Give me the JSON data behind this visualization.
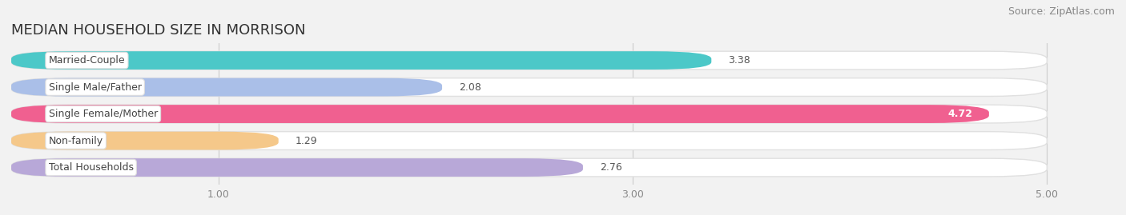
{
  "title": "MEDIAN HOUSEHOLD SIZE IN MORRISON",
  "source": "Source: ZipAtlas.com",
  "categories": [
    "Married-Couple",
    "Single Male/Father",
    "Single Female/Mother",
    "Non-family",
    "Total Households"
  ],
  "values": [
    3.38,
    2.08,
    4.72,
    1.29,
    2.76
  ],
  "bar_colors": [
    "#4cc8c8",
    "#aabfe8",
    "#f06090",
    "#f5c88a",
    "#b8a8d8"
  ],
  "background_color": "#f2f2f2",
  "bar_bg_color": "#ffffff",
  "bar_border_color": "#e0e0e0",
  "xlim_min": 0,
  "xlim_max": 5.3,
  "xaxis_min": 0,
  "xaxis_max": 5.0,
  "xticks": [
    1.0,
    3.0,
    5.0
  ],
  "xtick_labels": [
    "1.00",
    "3.00",
    "5.00"
  ],
  "title_fontsize": 13,
  "source_fontsize": 9,
  "label_fontsize": 9,
  "value_fontsize": 9
}
